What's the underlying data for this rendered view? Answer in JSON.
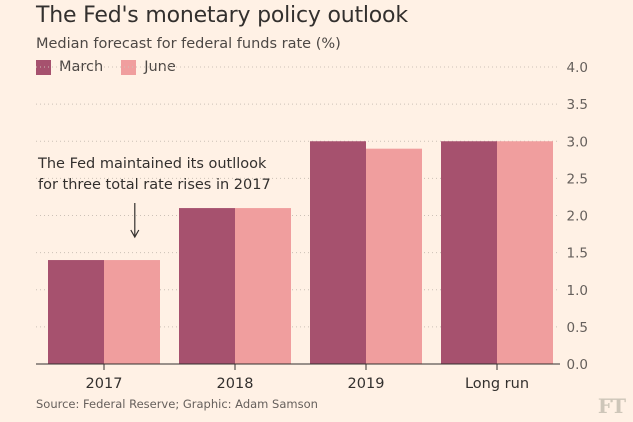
{
  "title": "The Fed's monetary policy outlook",
  "subtitle": "Median forecast for federal funds rate (%)",
  "source": "Source: Federal Reserve; Graphic: Adam Samson",
  "logo": "FT",
  "annotation": {
    "line1": "The Fed maintained its outllook",
    "line2": "for three total rate rises in 2017"
  },
  "colors": {
    "background": "#fff1e5",
    "march": "#a6516e",
    "june": "#f09e9e"
  },
  "chart_data": {
    "type": "bar",
    "title": "The Fed's monetary policy outlook",
    "subtitle": "Median forecast for federal funds rate (%)",
    "xlabel": "",
    "ylabel": "",
    "categories": [
      "2017",
      "2018",
      "2019",
      "Long run"
    ],
    "series": [
      {
        "name": "March",
        "color": "#a6516e",
        "values": [
          1.4,
          2.1,
          3.0,
          3.0
        ]
      },
      {
        "name": "June",
        "color": "#f09e9e",
        "values": [
          1.4,
          2.1,
          2.9,
          3.0
        ]
      }
    ],
    "ylim": [
      0,
      4.0
    ],
    "yticks": [
      "0.0",
      "0.5",
      "1.0",
      "1.5",
      "2.0",
      "2.5",
      "3.0",
      "3.5",
      "4.0"
    ],
    "y_axis_position": "right",
    "grid": "horizontal-dotted",
    "legend": "top-left"
  }
}
